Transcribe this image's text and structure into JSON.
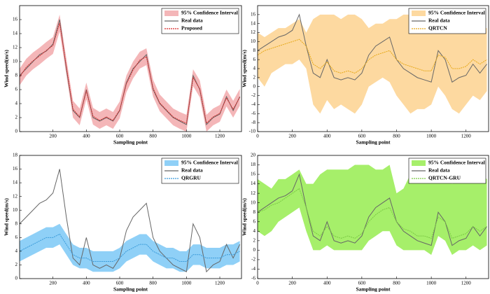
{
  "chart_data": [
    {
      "type": "line",
      "xlabel": "Sampling point",
      "ylabel": "Wind speed(m/s)",
      "xlim": [
        0,
        1330
      ],
      "xticks": [
        200,
        400,
        600,
        800,
        1000,
        1200
      ],
      "ylim": [
        0,
        18
      ],
      "yticks": [
        0,
        2,
        4,
        6,
        8,
        10,
        12,
        14,
        16
      ],
      "x": [
        0,
        40,
        80,
        120,
        160,
        200,
        240,
        280,
        320,
        360,
        400,
        440,
        480,
        520,
        560,
        600,
        640,
        680,
        720,
        760,
        800,
        840,
        880,
        920,
        960,
        1000,
        1040,
        1080,
        1120,
        1160,
        1200,
        1240,
        1280,
        1320
      ],
      "series": [
        {
          "name": "95% Confidence Interval",
          "color": "#f4b6b8",
          "values": [
            9,
            10.4,
            11.3,
            12,
            12.8,
            13.5,
            16.7,
            10.5,
            4.4,
            3.3,
            7,
            3.4,
            2.8,
            3.3,
            2.8,
            4.3,
            8,
            10,
            11.4,
            11.9,
            7.4,
            5.3,
            4.3,
            3.3,
            2.8,
            2.4,
            8.9,
            7.3,
            2.4,
            3.3,
            3.8,
            6,
            4.4,
            6.1
          ],
          "lower": [
            6.6,
            8,
            8.9,
            9.6,
            10.4,
            11.1,
            14.3,
            8.1,
            2,
            0.9,
            4.6,
            1,
            0.4,
            0.9,
            0.4,
            1.9,
            5.6,
            7.6,
            9,
            9.5,
            5,
            2.9,
            1.9,
            0.9,
            0.4,
            0,
            6.5,
            4.9,
            0,
            0.9,
            1.4,
            3.6,
            2,
            3.7
          ]
        },
        {
          "name": "Real data",
          "color": "#666666",
          "values": [
            8,
            9,
            10,
            11,
            11.5,
            12.5,
            16,
            9,
            3,
            2,
            6,
            2,
            1.5,
            2,
            1.5,
            3,
            7,
            9,
            10,
            11,
            6,
            4,
            3,
            2,
            1.5,
            1,
            8,
            6,
            1,
            2,
            2.5,
            5,
            3,
            5
          ]
        },
        {
          "name": "Proposed",
          "color": "#d62728",
          "dashed": true,
          "values": [
            7.8,
            9.2,
            10.1,
            10.8,
            11.6,
            12.3,
            15.5,
            9.3,
            3.2,
            2.1,
            5.8,
            2.2,
            1.6,
            2.1,
            1.6,
            3.1,
            6.8,
            8.8,
            10.2,
            10.7,
            6.2,
            4.1,
            3.1,
            2.1,
            1.6,
            1.2,
            7.7,
            6.1,
            1.2,
            2.1,
            2.6,
            4.8,
            3.2,
            4.9
          ]
        }
      ]
    },
    {
      "type": "line",
      "xlabel": "Sampling point",
      "ylabel": "Wind speed(m/s)",
      "xlim": [
        0,
        1330
      ],
      "xticks": [
        0,
        200,
        400,
        600,
        800,
        1000,
        1200
      ],
      "ylim": [
        -10,
        18
      ],
      "yticks": [
        -10,
        -8,
        -6,
        -4,
        -2,
        0,
        2,
        4,
        6,
        8,
        10,
        12,
        14,
        16
      ],
      "x": [
        0,
        40,
        80,
        120,
        160,
        200,
        240,
        280,
        320,
        360,
        400,
        440,
        480,
        520,
        560,
        600,
        640,
        680,
        720,
        760,
        800,
        840,
        880,
        920,
        960,
        1000,
        1040,
        1080,
        1120,
        1160,
        1200,
        1240,
        1280,
        1320
      ],
      "series": [
        {
          "name": "95% Confidence Interval",
          "color": "#fdd9a0",
          "values": [
            12,
            11,
            12,
            13,
            13,
            14,
            15,
            12,
            15,
            16,
            16,
            16,
            15,
            16,
            16,
            15,
            13,
            14,
            14,
            15,
            15,
            16,
            16,
            16,
            15,
            14,
            15,
            16,
            15,
            14,
            12,
            14,
            13,
            13
          ],
          "lower": [
            2,
            0,
            3,
            4,
            5,
            5,
            6,
            4,
            -4,
            -6,
            -3,
            -5,
            -4,
            -5,
            -6,
            -4,
            0,
            1,
            2,
            1,
            -2,
            -4,
            -6,
            -5,
            -5,
            -4,
            0,
            -2,
            -5,
            -6,
            -4,
            -2,
            -3,
            -1
          ]
        },
        {
          "name": "Real data",
          "color": "#666666",
          "values": [
            8,
            9,
            10,
            11,
            11.5,
            12.5,
            16,
            9,
            3,
            2,
            6,
            2,
            1.5,
            2,
            1.5,
            3,
            7,
            9,
            10,
            11,
            6,
            4,
            3,
            2,
            1.5,
            1,
            8,
            6,
            1,
            2,
            2.5,
            5,
            3,
            5
          ]
        },
        {
          "name": "QRTCN",
          "color": "#e6a817",
          "dashed": true,
          "values": [
            7,
            8,
            8.5,
            9,
            9.5,
            10,
            10.5,
            9,
            5,
            4,
            5.5,
            3.5,
            3,
            3.5,
            3,
            4,
            6,
            7,
            7.5,
            8,
            6,
            5,
            4.5,
            4,
            3.5,
            3.5,
            7,
            6.5,
            4,
            4,
            4.5,
            6,
            5,
            6
          ]
        }
      ]
    },
    {
      "type": "line",
      "xlabel": "Sampling point",
      "ylabel": "Wind speed(m/s)",
      "xlim": [
        0,
        1330
      ],
      "xticks": [
        200,
        400,
        600,
        800,
        1000,
        1200
      ],
      "ylim": [
        0,
        18
      ],
      "yticks": [
        0,
        2,
        4,
        6,
        8,
        10,
        12,
        14,
        16,
        18
      ],
      "x": [
        0,
        40,
        80,
        120,
        160,
        200,
        240,
        280,
        320,
        360,
        400,
        440,
        480,
        520,
        560,
        600,
        640,
        680,
        720,
        760,
        800,
        840,
        880,
        920,
        960,
        1000,
        1040,
        1080,
        1120,
        1160,
        1200,
        1240,
        1280,
        1320
      ],
      "series": [
        {
          "name": "95% Confidence Interval",
          "color": "#8fd0f7",
          "values": [
            5.5,
            6,
            6.5,
            7,
            7.5,
            7.5,
            8,
            6.5,
            5,
            4.5,
            4.5,
            4,
            4,
            4,
            4,
            4.5,
            5.5,
            6,
            6.5,
            6.5,
            5.5,
            5,
            4.5,
            4.5,
            4,
            4,
            5,
            5,
            4.5,
            4.5,
            4.5,
            5,
            5,
            5.5
          ],
          "lower": [
            2.5,
            3,
            3.5,
            4,
            4.5,
            4.5,
            5,
            3.5,
            2,
            1.5,
            1.5,
            1,
            1,
            1,
            1,
            1.5,
            2.5,
            3,
            3.5,
            3.5,
            2.5,
            2,
            1.5,
            1.5,
            1,
            1,
            2,
            2,
            1.5,
            1.5,
            1.5,
            2,
            2,
            2.5
          ]
        },
        {
          "name": "Real data",
          "color": "#666666",
          "values": [
            8,
            9,
            10,
            11,
            11.5,
            12.5,
            16,
            9,
            3,
            2,
            6,
            2,
            1.5,
            2,
            1.5,
            3,
            7,
            9,
            10,
            11,
            6,
            4,
            3,
            2,
            1.5,
            1,
            8,
            6,
            1,
            2,
            2.5,
            5,
            3,
            5
          ]
        },
        {
          "name": "QRGRU",
          "color": "#3a9ad9",
          "dashed": true,
          "values": [
            4,
            4.5,
            5,
            5.5,
            6,
            6,
            6.5,
            5,
            3.5,
            3,
            3,
            2.5,
            2.5,
            2.5,
            2.5,
            3,
            4,
            4.5,
            5,
            5,
            4,
            3.5,
            3,
            3,
            2.5,
            2.5,
            3.5,
            3.5,
            3,
            3,
            3,
            3.5,
            3.5,
            4
          ]
        }
      ]
    },
    {
      "type": "line",
      "xlabel": "Sampling point",
      "ylabel": "Wind speed(m/s)",
      "xlim": [
        0,
        1330
      ],
      "xticks": [
        0,
        200,
        400,
        600,
        800,
        1000,
        1200
      ],
      "ylim": [
        -6,
        20
      ],
      "yticks": [
        -6,
        -4,
        -2,
        0,
        2,
        4,
        6,
        8,
        10,
        12,
        14,
        16,
        18,
        20
      ],
      "x": [
        0,
        40,
        80,
        120,
        160,
        200,
        240,
        280,
        320,
        360,
        400,
        440,
        480,
        520,
        560,
        600,
        640,
        680,
        720,
        760,
        800,
        840,
        880,
        920,
        960,
        1000,
        1040,
        1080,
        1120,
        1160,
        1200,
        1240,
        1280,
        1320
      ],
      "series": [
        {
          "name": "95% Confidence Interval",
          "color": "#a6ef6a",
          "values": [
            15,
            14,
            13,
            15,
            15,
            16,
            17,
            14,
            14,
            16,
            17,
            17,
            17,
            17,
            18,
            18,
            18,
            17,
            17,
            18,
            12,
            13,
            16,
            17,
            17,
            16,
            18,
            16,
            14,
            15,
            15,
            17,
            16,
            15
          ],
          "lower": [
            4,
            3,
            4,
            6,
            7,
            8,
            9,
            4,
            0,
            0,
            1,
            0,
            0,
            0,
            0,
            0,
            2,
            3,
            4,
            4,
            1,
            0,
            0,
            0,
            0,
            -1,
            3,
            2,
            -1,
            0,
            0,
            1,
            0,
            1
          ]
        },
        {
          "name": "Real data",
          "color": "#666666",
          "values": [
            8,
            9,
            10,
            11,
            11.5,
            12.5,
            16,
            9,
            3,
            2,
            6,
            2,
            1.5,
            2,
            1.5,
            3,
            7,
            9,
            10,
            11,
            6,
            4,
            3,
            2,
            1.5,
            1,
            8,
            6,
            1,
            2,
            2.5,
            5,
            3,
            5
          ]
        },
        {
          "name": "QRTCN-GRU",
          "color": "#7ac943",
          "dashed": true,
          "values": [
            8,
            8.5,
            9.5,
            10,
            11,
            12,
            13,
            9,
            4,
            3,
            5,
            3,
            2.5,
            3,
            2.5,
            3.5,
            6,
            7.5,
            8.5,
            9,
            6,
            4.5,
            4,
            3,
            3,
            2.5,
            7,
            6,
            2.5,
            3,
            3.5,
            5,
            4,
            5
          ]
        }
      ]
    }
  ]
}
